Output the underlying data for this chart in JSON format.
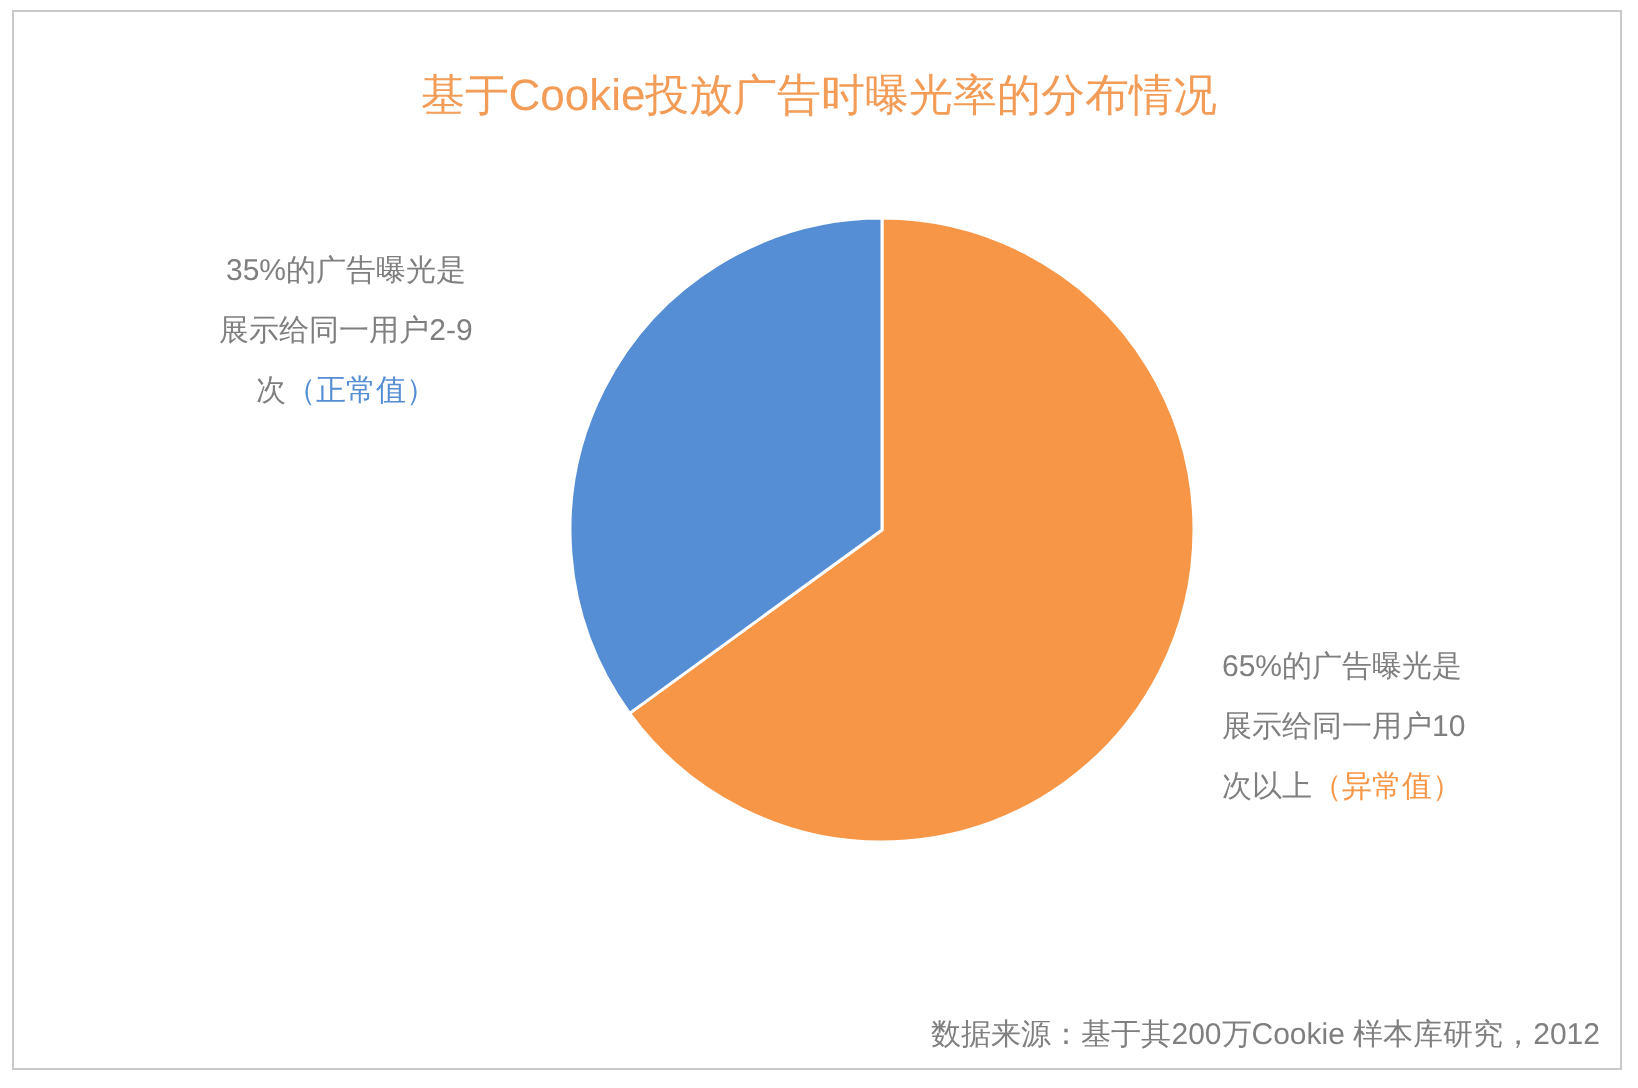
{
  "chart_data": {
    "type": "pie",
    "title": "基于Cookie投放广告时曝光率的分布情况",
    "categories": [
      "65%的广告曝光是展示给同一用户10次以上（异常值）",
      "35%的广告曝光是展示给同一用户2-9次（正常值）"
    ],
    "values": [
      65,
      35
    ],
    "colors": [
      "#f79646",
      "#558ed5"
    ],
    "annotations": [
      "数据来源：基于其200万Cookie 样本库研究，2012"
    ]
  }
}
